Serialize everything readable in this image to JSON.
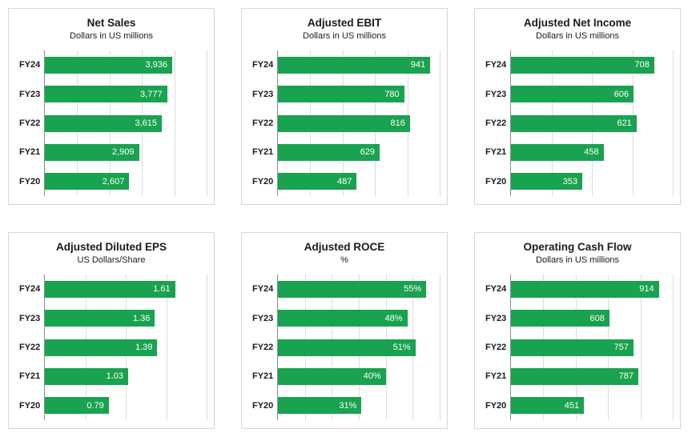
{
  "theme": {
    "bar_color": "#19a24f",
    "grid_color": "#dcdcdc",
    "axis_color": "#8c8c8c",
    "panel_border": "#d6d6d6",
    "value_text_color": "#ffffff",
    "background": "#ffffff"
  },
  "chart_data": [
    {
      "type": "bar",
      "orientation": "horizontal",
      "title": "Net Sales",
      "subtitle": "Dollars in US millions",
      "categories": [
        "FY24",
        "FY23",
        "FY22",
        "FY21",
        "FY20"
      ],
      "values": [
        3936,
        3777,
        3615,
        2909,
        2607
      ],
      "value_labels": [
        "3,936",
        "3,777",
        "3,615",
        "2,909",
        "2,607"
      ],
      "xlim": [
        0,
        5000
      ],
      "grid_interval": 1000,
      "gridlines": true,
      "legend": "none"
    },
    {
      "type": "bar",
      "orientation": "horizontal",
      "title": "Adjusted EBIT",
      "subtitle": "Dollars in US millions",
      "categories": [
        "FY24",
        "FY23",
        "FY22",
        "FY21",
        "FY20"
      ],
      "values": [
        941,
        780,
        816,
        629,
        487
      ],
      "value_labels": [
        "941",
        "780",
        "816",
        "629",
        "487"
      ],
      "xlim": [
        0,
        1000
      ],
      "grid_interval": 200,
      "gridlines": true,
      "legend": "none"
    },
    {
      "type": "bar",
      "orientation": "horizontal",
      "title": "Adjusted Net Income",
      "subtitle": "Dollars in US millions",
      "categories": [
        "FY24",
        "FY23",
        "FY22",
        "FY21",
        "FY20"
      ],
      "values": [
        708,
        606,
        621,
        458,
        353
      ],
      "value_labels": [
        "708",
        "606",
        "621",
        "458",
        "353"
      ],
      "xlim": [
        0,
        800
      ],
      "grid_interval": 200,
      "gridlines": true,
      "legend": "none"
    },
    {
      "type": "bar",
      "orientation": "horizontal",
      "title": "Adjusted Diluted EPS",
      "subtitle": "US Dollars/Share",
      "categories": [
        "FY24",
        "FY23",
        "FY22",
        "FY21",
        "FY20"
      ],
      "values": [
        1.61,
        1.36,
        1.39,
        1.03,
        0.79
      ],
      "value_labels": [
        "1.61",
        "1.36",
        "1.39",
        "1.03",
        "0.79"
      ],
      "xlim": [
        0,
        2
      ],
      "grid_interval": 0.5,
      "gridlines": true,
      "legend": "none"
    },
    {
      "type": "bar",
      "orientation": "horizontal",
      "title": "Adjusted ROCE",
      "subtitle": "%",
      "categories": [
        "FY24",
        "FY23",
        "FY22",
        "FY21",
        "FY20"
      ],
      "values": [
        55,
        48,
        51,
        40,
        31
      ],
      "value_labels": [
        "55%",
        "48%",
        "51%",
        "40%",
        "31%"
      ],
      "xlim": [
        0,
        60
      ],
      "grid_interval": 10,
      "gridlines": true,
      "legend": "none"
    },
    {
      "type": "bar",
      "orientation": "horizontal",
      "title": "Operating Cash Flow",
      "subtitle": "Dollars in US millions",
      "categories": [
        "FY24",
        "FY23",
        "FY22",
        "FY21",
        "FY20"
      ],
      "values": [
        914,
        608,
        757,
        787,
        451
      ],
      "value_labels": [
        "914",
        "608",
        "757",
        "787",
        "451"
      ],
      "xlim": [
        0,
        1000
      ],
      "grid_interval": 200,
      "gridlines": true,
      "legend": "none"
    }
  ]
}
